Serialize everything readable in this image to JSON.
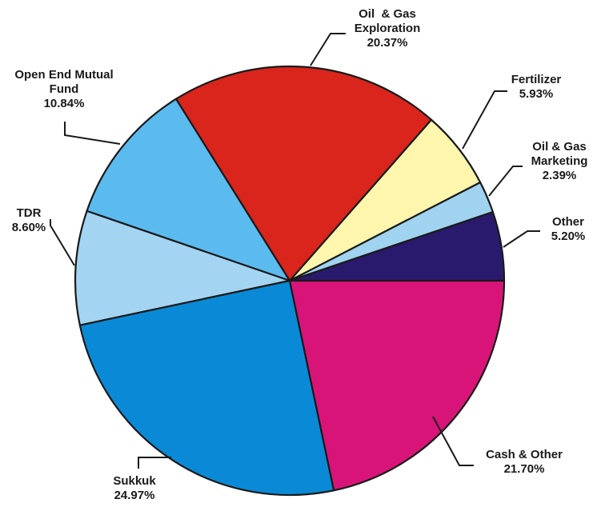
{
  "chart_data": {
    "type": "pie",
    "start_angle_deg": 0,
    "direction": "counter-clockwise",
    "slices": [
      {
        "label": [
          "Other"
        ],
        "value_label": "5.20%",
        "value": 5.2,
        "color": "#2a1a6e"
      },
      {
        "label": [
          "Oil & Gas",
          "Marketing"
        ],
        "value_label": "2.39%",
        "value": 2.39,
        "color": "#9fd3f0"
      },
      {
        "label": [
          "Fertilizer"
        ],
        "value_label": "5.93%",
        "value": 5.93,
        "color": "#fdf6ac"
      },
      {
        "label": [
          "Oil  & Gas",
          "Exploration"
        ],
        "value_label": "20.37%",
        "value": 20.37,
        "color": "#d9251c"
      },
      {
        "label": [
          "Open End Mutual",
          "Fund"
        ],
        "value_label": "10.84%",
        "value": 10.84,
        "color": "#5bbbef"
      },
      {
        "label": [
          "TDR"
        ],
        "value_label": "8.60%",
        "value": 8.6,
        "color": "#a3d4f2"
      },
      {
        "label": [
          "Sukkuk"
        ],
        "value_label": "24.97%",
        "value": 24.97,
        "color": "#0a8ad6"
      },
      {
        "label": [
          "Cash & Other"
        ],
        "value_label": "21.70%",
        "value": 21.7,
        "color": "#d91479"
      }
    ]
  }
}
